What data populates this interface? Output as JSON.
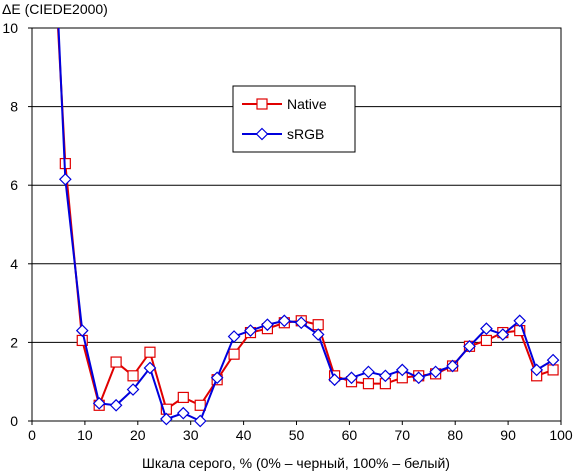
{
  "chart_data": {
    "type": "line",
    "ylabel": "ΔE (CIEDE2000)",
    "xlabel": "Шкала серого, % (0% – черный, 100% – белый)",
    "xlim": [
      0,
      100
    ],
    "ylim": [
      0,
      10
    ],
    "x_ticks": [
      0,
      10,
      20,
      30,
      40,
      50,
      60,
      70,
      80,
      90,
      100
    ],
    "y_ticks": [
      0,
      2,
      4,
      6,
      8,
      10
    ],
    "grid": "horizontal",
    "legend_position": "center",
    "series": [
      {
        "name": "Native",
        "color": "#e00000",
        "marker": "square",
        "x": [
          6.3,
          9.5,
          12.7,
          15.9,
          19.1,
          22.3,
          25.4,
          28.6,
          31.8,
          35.0,
          38.2,
          41.3,
          44.5,
          47.7,
          50.9,
          54.1,
          57.2,
          60.4,
          63.6,
          66.8,
          70.0,
          73.1,
          76.3,
          79.5,
          82.7,
          85.9,
          89.0,
          92.2,
          95.4,
          98.5
        ],
        "y": [
          6.55,
          2.05,
          0.4,
          1.5,
          1.15,
          1.75,
          0.3,
          0.6,
          0.4,
          1.05,
          1.7,
          2.25,
          2.35,
          2.5,
          2.55,
          2.45,
          1.15,
          1.0,
          0.95,
          0.95,
          1.1,
          1.15,
          1.2,
          1.4,
          1.9,
          2.05,
          2.25,
          2.3,
          1.15,
          1.3
        ]
      },
      {
        "name": "sRGB",
        "color": "#0000dd",
        "marker": "diamond",
        "x": [
          6.3,
          9.5,
          12.7,
          15.9,
          19.1,
          22.3,
          25.4,
          28.6,
          31.8,
          35.0,
          38.2,
          41.3,
          44.5,
          47.7,
          50.9,
          54.1,
          57.2,
          60.4,
          63.6,
          66.8,
          70.0,
          73.1,
          76.3,
          79.5,
          82.7,
          85.9,
          89.0,
          92.2,
          95.4,
          98.5
        ],
        "y": [
          6.15,
          2.3,
          0.45,
          0.4,
          0.8,
          1.35,
          0.05,
          0.2,
          0.0,
          1.1,
          2.15,
          2.3,
          2.45,
          2.55,
          2.5,
          2.2,
          1.05,
          1.1,
          1.25,
          1.15,
          1.3,
          1.1,
          1.25,
          1.4,
          1.9,
          2.35,
          2.2,
          2.55,
          1.3,
          1.55
        ]
      }
    ]
  }
}
